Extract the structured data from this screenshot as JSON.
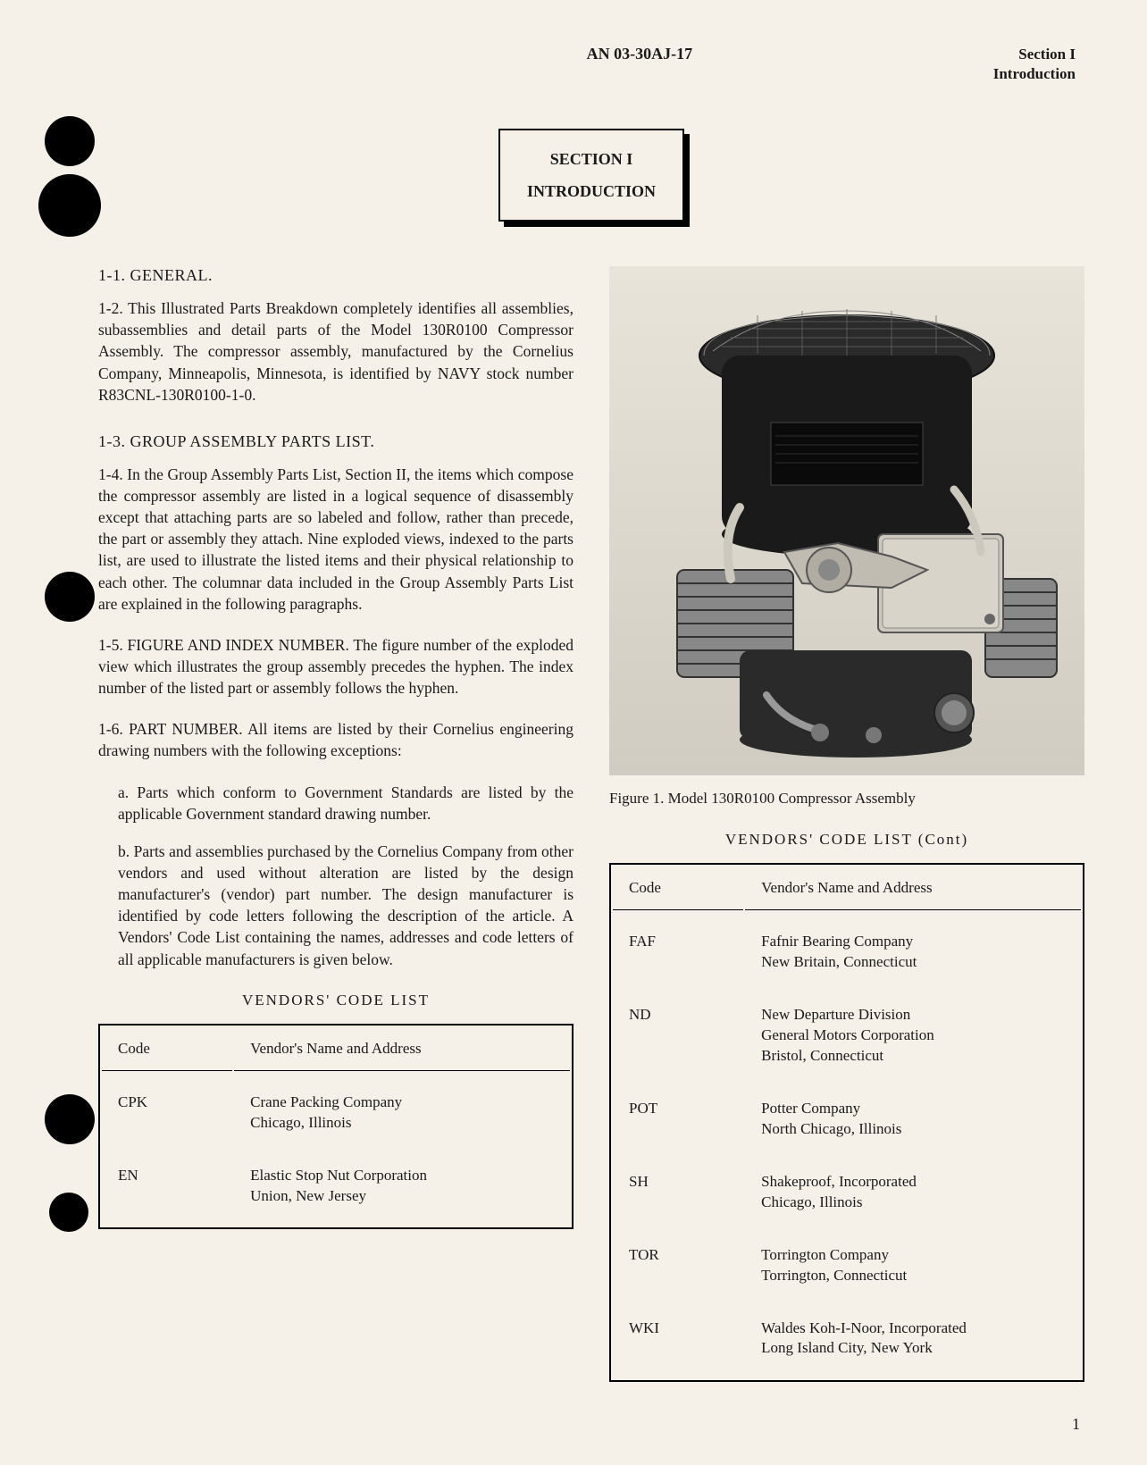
{
  "header": {
    "doc_number": "AN 03-30AJ-17",
    "section": "Section I",
    "subsection": "Introduction"
  },
  "section_box": {
    "line1": "SECTION I",
    "line2": "INTRODUCTION"
  },
  "headings": {
    "h1_1": "1-1.  GENERAL.",
    "h1_3": "1-3.  GROUP ASSEMBLY PARTS LIST."
  },
  "paras": {
    "p1_2": "1-2. This Illustrated Parts Breakdown completely identifies all assemblies, subassemblies and detail parts of the Model 130R0100 Compressor Assembly. The compressor assembly, manufactured by the Cornelius Company, Minneapolis, Minnesota, is identified by NAVY stock number R83CNL-130R0100-1-0.",
    "p1_4": "1-4. In the Group Assembly Parts List, Section II, the items which compose the compressor assembly are listed in a logical sequence of disassembly except that attaching parts are so labeled and follow, rather than precede, the part or assembly they attach. Nine exploded views, indexed to the parts list, are used to illustrate the listed items and their physical relationship to each other. The columnar data included in the Group Assembly Parts List are explained in the following paragraphs.",
    "p1_5": "1-5. FIGURE AND INDEX NUMBER.  The figure number of the exploded view which illustrates the group assembly precedes the hyphen. The index number of the listed part or assembly follows the hyphen.",
    "p1_6": "1-6. PART NUMBER. All items are listed by their Cornelius engineering drawing numbers with the following exceptions:",
    "p1_6a": "a. Parts which conform to Government Standards are listed by the applicable Government standard drawing number.",
    "p1_6b": "b. Parts and assemblies purchased by the Cornelius Company from other vendors and used without alteration are listed by the design manufacturer's (vendor) part number. The design manufacturer is identified by code letters following the description of the article. A Vendors' Code List containing the names, addresses and code letters of all applicable manufacturers is given below."
  },
  "figure": {
    "caption": "Figure 1. Model 130R0100 Compressor Assembly"
  },
  "tables": {
    "title1": "VENDORS'  CODE LIST",
    "title2": "VENDORS'  CODE LIST (Cont)",
    "col1_header": "Code",
    "col2_header": "Vendor's Name and Address",
    "table1_rows": [
      {
        "code": "CPK",
        "name": "Crane Packing Company\nChicago, Illinois"
      },
      {
        "code": "EN",
        "name": "Elastic Stop Nut Corporation\nUnion, New Jersey"
      }
    ],
    "table2_rows": [
      {
        "code": "FAF",
        "name": "Fafnir Bearing Company\nNew Britain, Connecticut"
      },
      {
        "code": "ND",
        "name": "New Departure Division\nGeneral Motors Corporation\nBristol, Connecticut"
      },
      {
        "code": "POT",
        "name": "Potter Company\nNorth Chicago, Illinois"
      },
      {
        "code": "SH",
        "name": "Shakeproof, Incorporated\nChicago, Illinois"
      },
      {
        "code": "TOR",
        "name": "Torrington Company\nTorrington, Connecticut"
      },
      {
        "code": "WKI",
        "name": "Waldes Koh-I-Noor, Incorporated\nLong Island City, New York"
      }
    ]
  },
  "page_number": "1",
  "colors": {
    "page_bg": "#f5f0e8",
    "text": "#1a1a1a",
    "border": "#000000"
  }
}
